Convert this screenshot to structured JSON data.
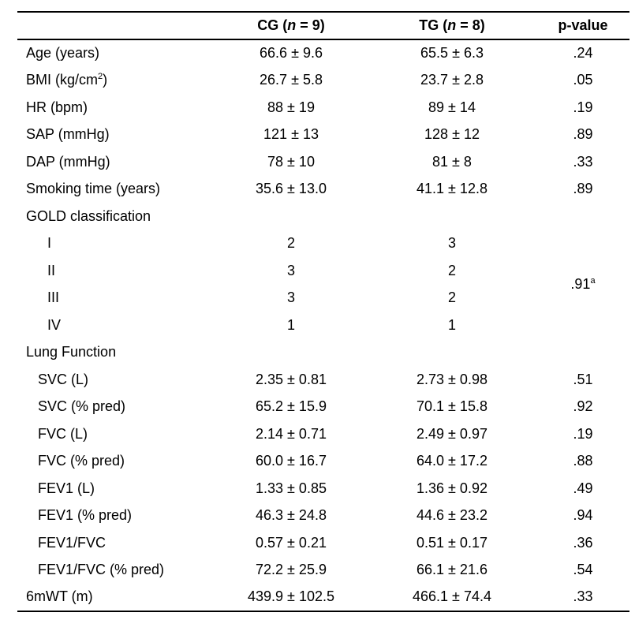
{
  "colors": {
    "text": "#000000",
    "background": "#ffffff",
    "rule": "#000000"
  },
  "table": {
    "columns": [
      {
        "key": "label",
        "label": ""
      },
      {
        "key": "cg",
        "label_parts": [
          "CG (",
          {
            "italic": "n"
          },
          " = 9)"
        ]
      },
      {
        "key": "tg",
        "label_parts": [
          "TG (",
          {
            "italic": "n"
          },
          " = 8)"
        ]
      },
      {
        "key": "p",
        "label": "p-value"
      }
    ],
    "rows": [
      {
        "label": "Age (years)",
        "indent": 0,
        "cg": "66.6 ± 9.6",
        "tg": "65.5 ± 6.3",
        "p": ".24"
      },
      {
        "label_parts": [
          "BMI (kg/cm",
          {
            "sup": "2"
          },
          ")"
        ],
        "label": "BMI (kg/cm2)",
        "indent": 0,
        "cg": "26.7 ± 5.8",
        "tg": "23.7 ± 2.8",
        "p": ".05"
      },
      {
        "label": "HR (bpm)",
        "indent": 0,
        "cg": "88 ± 19",
        "tg": "89 ± 14",
        "p": ".19"
      },
      {
        "label": "SAP (mmHg)",
        "indent": 0,
        "cg": "121 ± 13",
        "tg": "128 ± 12",
        "p": ".89"
      },
      {
        "label": "DAP (mmHg)",
        "indent": 0,
        "cg": "78 ± 10",
        "tg": "81 ± 8",
        "p": ".33"
      },
      {
        "label": "Smoking time (years)",
        "indent": 0,
        "cg": "35.6 ± 13.0",
        "tg": "41.1 ± 12.8",
        "p": ".89"
      },
      {
        "label": "GOLD classification",
        "indent": 0,
        "section": true,
        "cg": "",
        "tg": "",
        "p": ""
      },
      {
        "label": "I",
        "indent": 2,
        "cg": "2",
        "tg": "3",
        "p": ".91",
        "p_sup": "a",
        "p_rowspan": 4
      },
      {
        "label": "II",
        "indent": 2,
        "cg": "3",
        "tg": "2",
        "p_omit": true
      },
      {
        "label": "III",
        "indent": 2,
        "cg": "3",
        "tg": "2",
        "p_omit": true
      },
      {
        "label": "IV",
        "indent": 2,
        "cg": "1",
        "tg": "1",
        "p_omit": true
      },
      {
        "label": "Lung Function",
        "indent": 0,
        "section": true,
        "cg": "",
        "tg": "",
        "p": ""
      },
      {
        "label": "SVC (L)",
        "indent": 1,
        "cg": "2.35 ± 0.81",
        "tg": "2.73 ± 0.98",
        "p": ".51"
      },
      {
        "label": "SVC (% pred)",
        "indent": 1,
        "cg": "65.2 ± 15.9",
        "tg": "70.1 ± 15.8",
        "p": ".92"
      },
      {
        "label": "FVC (L)",
        "indent": 1,
        "cg": "2.14 ± 0.71",
        "tg": "2.49 ± 0.97",
        "p": ".19"
      },
      {
        "label": "FVC (% pred)",
        "indent": 1,
        "cg": "60.0 ± 16.7",
        "tg": "64.0 ± 17.2",
        "p": ".88"
      },
      {
        "label": "FEV1 (L)",
        "indent": 1,
        "cg": "1.33 ± 0.85",
        "tg": "1.36 ± 0.92",
        "p": ".49"
      },
      {
        "label": "FEV1 (% pred)",
        "indent": 1,
        "cg": "46.3 ± 24.8",
        "tg": "44.6 ± 23.2",
        "p": ".94"
      },
      {
        "label": "FEV1/FVC",
        "indent": 1,
        "cg": "0.57 ± 0.21",
        "tg": "0.51 ± 0.17",
        "p": ".36"
      },
      {
        "label": "FEV1/FVC (% pred)",
        "indent": 1,
        "cg": "72.2 ± 25.9",
        "tg": "66.1 ± 21.6",
        "p": ".54"
      },
      {
        "label": "6mWT (m)",
        "indent": 0,
        "cg": "439.9 ± 102.5",
        "tg": "466.1 ± 74.4",
        "p": ".33"
      }
    ]
  }
}
